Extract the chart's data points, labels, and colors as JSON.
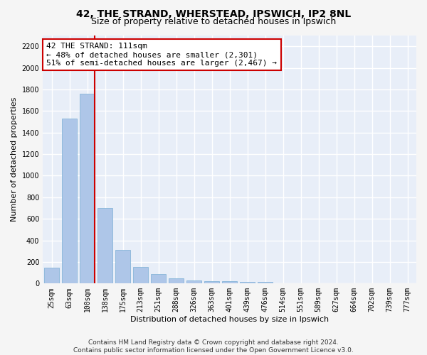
{
  "title1": "42, THE STRAND, WHERSTEAD, IPSWICH, IP2 8NL",
  "title2": "Size of property relative to detached houses in Ipswich",
  "xlabel": "Distribution of detached houses by size in Ipswich",
  "ylabel": "Number of detached properties",
  "categories": [
    "25sqm",
    "63sqm",
    "100sqm",
    "138sqm",
    "175sqm",
    "213sqm",
    "251sqm",
    "288sqm",
    "326sqm",
    "363sqm",
    "401sqm",
    "439sqm",
    "476sqm",
    "514sqm",
    "551sqm",
    "589sqm",
    "627sqm",
    "664sqm",
    "702sqm",
    "739sqm",
    "777sqm"
  ],
  "values": [
    150,
    1530,
    1760,
    700,
    310,
    155,
    85,
    45,
    30,
    20,
    20,
    15,
    15,
    5,
    3,
    2,
    2,
    1,
    1,
    1,
    1
  ],
  "bar_color": "#aec6e8",
  "bar_edge_color": "#7aafd4",
  "vline_x_index": 2,
  "vline_color": "#cc0000",
  "annotation_text": "42 THE STRAND: 111sqm\n← 48% of detached houses are smaller (2,301)\n51% of semi-detached houses are larger (2,467) →",
  "annotation_box_color": "#ffffff",
  "annotation_box_edge": "#cc0000",
  "ylim": [
    0,
    2300
  ],
  "yticks": [
    0,
    200,
    400,
    600,
    800,
    1000,
    1200,
    1400,
    1600,
    1800,
    2000,
    2200
  ],
  "background_color": "#e8eef8",
  "fig_background": "#f5f5f5",
  "footer_text": "Contains HM Land Registry data © Crown copyright and database right 2024.\nContains public sector information licensed under the Open Government Licence v3.0.",
  "grid_color": "#ffffff",
  "title1_fontsize": 10,
  "title2_fontsize": 9,
  "xlabel_fontsize": 8,
  "ylabel_fontsize": 8,
  "tick_fontsize": 7,
  "annotation_fontsize": 8,
  "footer_fontsize": 6.5
}
